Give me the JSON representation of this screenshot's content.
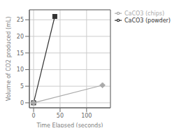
{
  "chart_data": {
    "type": "line",
    "xlabel": "Time Elapsed (seconds)",
    "ylabel": "Volume of CO2 produced (mL)",
    "series": [
      {
        "name": "CaCO3 (powder)",
        "color": "#333333",
        "marker": "square",
        "x": [
          0,
          40
        ],
        "values": [
          0,
          26
        ]
      },
      {
        "name": "CaCO3 (chips)",
        "color": "#aaaaaa",
        "marker": "diamond",
        "x": [
          0,
          130
        ],
        "values": [
          0,
          5.3
        ]
      }
    ],
    "xlim": [
      -8,
      145
    ],
    "ylim": [
      -1.5,
      28
    ],
    "xticks": [
      0,
      50,
      100
    ],
    "yticks": [
      0,
      5,
      10,
      15,
      20,
      25
    ],
    "grid": true,
    "legend": "right"
  }
}
